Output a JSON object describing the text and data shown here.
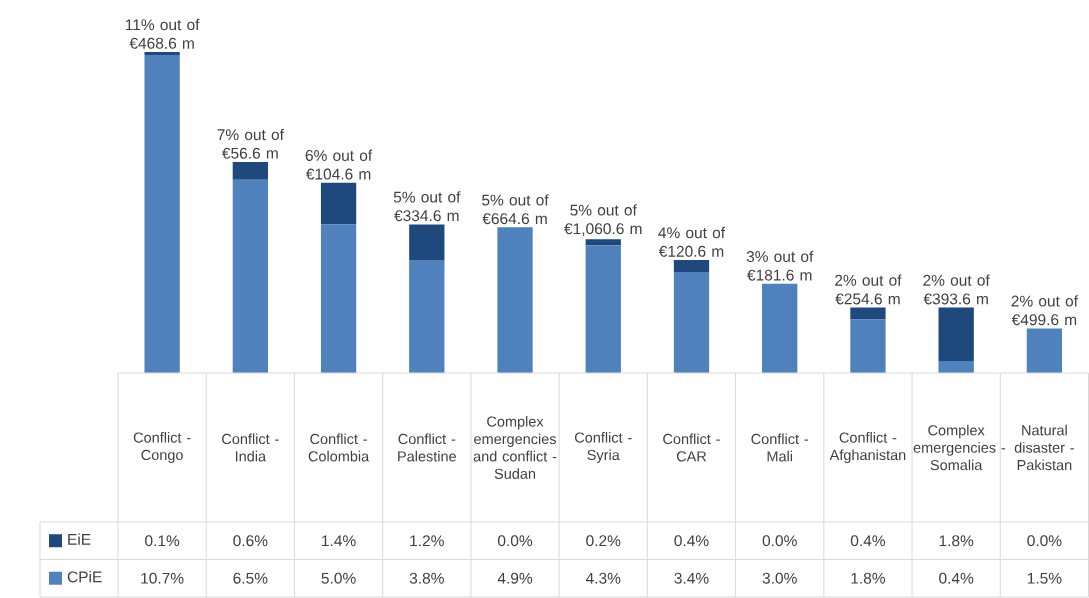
{
  "chart_data": {
    "type": "bar",
    "stacked": true,
    "legend": "bottom left",
    "categories": [
      "Conflict - Congo",
      "Conflict - India",
      "Conflict - Colombia",
      "Conflict - Palestine",
      "Complex emergencies and conflict - Sudan",
      "Conflict - Syria",
      "Conflict - CAR",
      "Conflict - Mali",
      "Conflict - Afghanistan",
      "Complex emergencies - Somalia",
      "Natural disaster - Pakistan"
    ],
    "series": [
      {
        "name": "CPiE",
        "color": "#4f81bd",
        "values": [
          10.7,
          6.5,
          5.0,
          3.8,
          4.9,
          4.3,
          3.4,
          3.0,
          1.8,
          0.4,
          1.5
        ],
        "value_labels": [
          "10.7%",
          "6.5%",
          "5.0%",
          "3.8%",
          "4.9%",
          "4.3%",
          "3.4%",
          "3.0%",
          "1.8%",
          "0.4%",
          "1.5%"
        ]
      },
      {
        "name": "EiE",
        "color": "#1f497d",
        "values": [
          0.1,
          0.6,
          1.4,
          1.2,
          0.0,
          0.2,
          0.4,
          0.0,
          0.4,
          1.8,
          0.0
        ],
        "value_labels": [
          "0.1%",
          "0.6%",
          "1.4%",
          "1.2%",
          "0.0%",
          "0.2%",
          "0.4%",
          "0.0%",
          "0.4%",
          "1.8%",
          "0.0%"
        ]
      }
    ],
    "totals": [
      "11% out of €468.6 m",
      "7% out of €56.6 m",
      "6% out of €104.6 m",
      "5% out of €334.6 m",
      "5% out of €664.6 m",
      "5% out of €1,060.6 m",
      "4% out of €120.6 m",
      "3% out of €181.6 m",
      "2% out of €254.6 m",
      "2% out of €393.6 m",
      "2% out of €499.6 m"
    ]
  }
}
